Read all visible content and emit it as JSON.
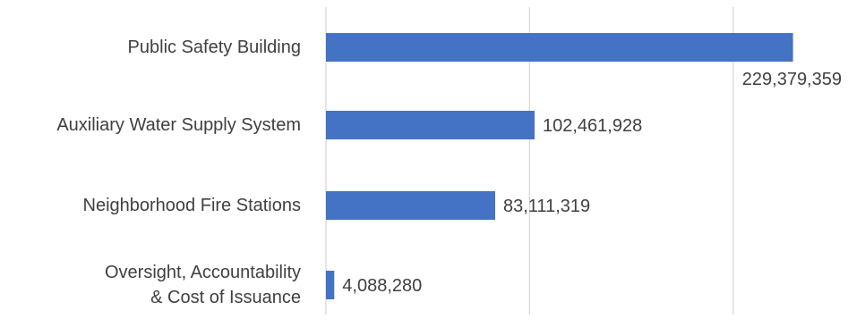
{
  "chart_data": {
    "type": "bar",
    "orientation": "horizontal",
    "categories": [
      [
        "Public Safety Building"
      ],
      [
        "Auxiliary Water Supply System"
      ],
      [
        "Neighborhood Fire Stations"
      ],
      [
        "Oversight, Accountability",
        "& Cost of Issuance"
      ]
    ],
    "values": [
      229379359,
      102461928,
      83111319,
      4088280
    ],
    "data_labels": [
      "229,379,359",
      "102,461,928",
      "83,111,319",
      "4,088,280"
    ],
    "title": "",
    "xlabel": "",
    "ylabel": "",
    "xlim": [
      0,
      230000000
    ],
    "x_gridlines": [
      0,
      100000000,
      200000000
    ],
    "grid": true,
    "legend": "none",
    "bar_color": "#4472C4",
    "grid_color": "#D9D9D9",
    "text_color": "#404040"
  }
}
